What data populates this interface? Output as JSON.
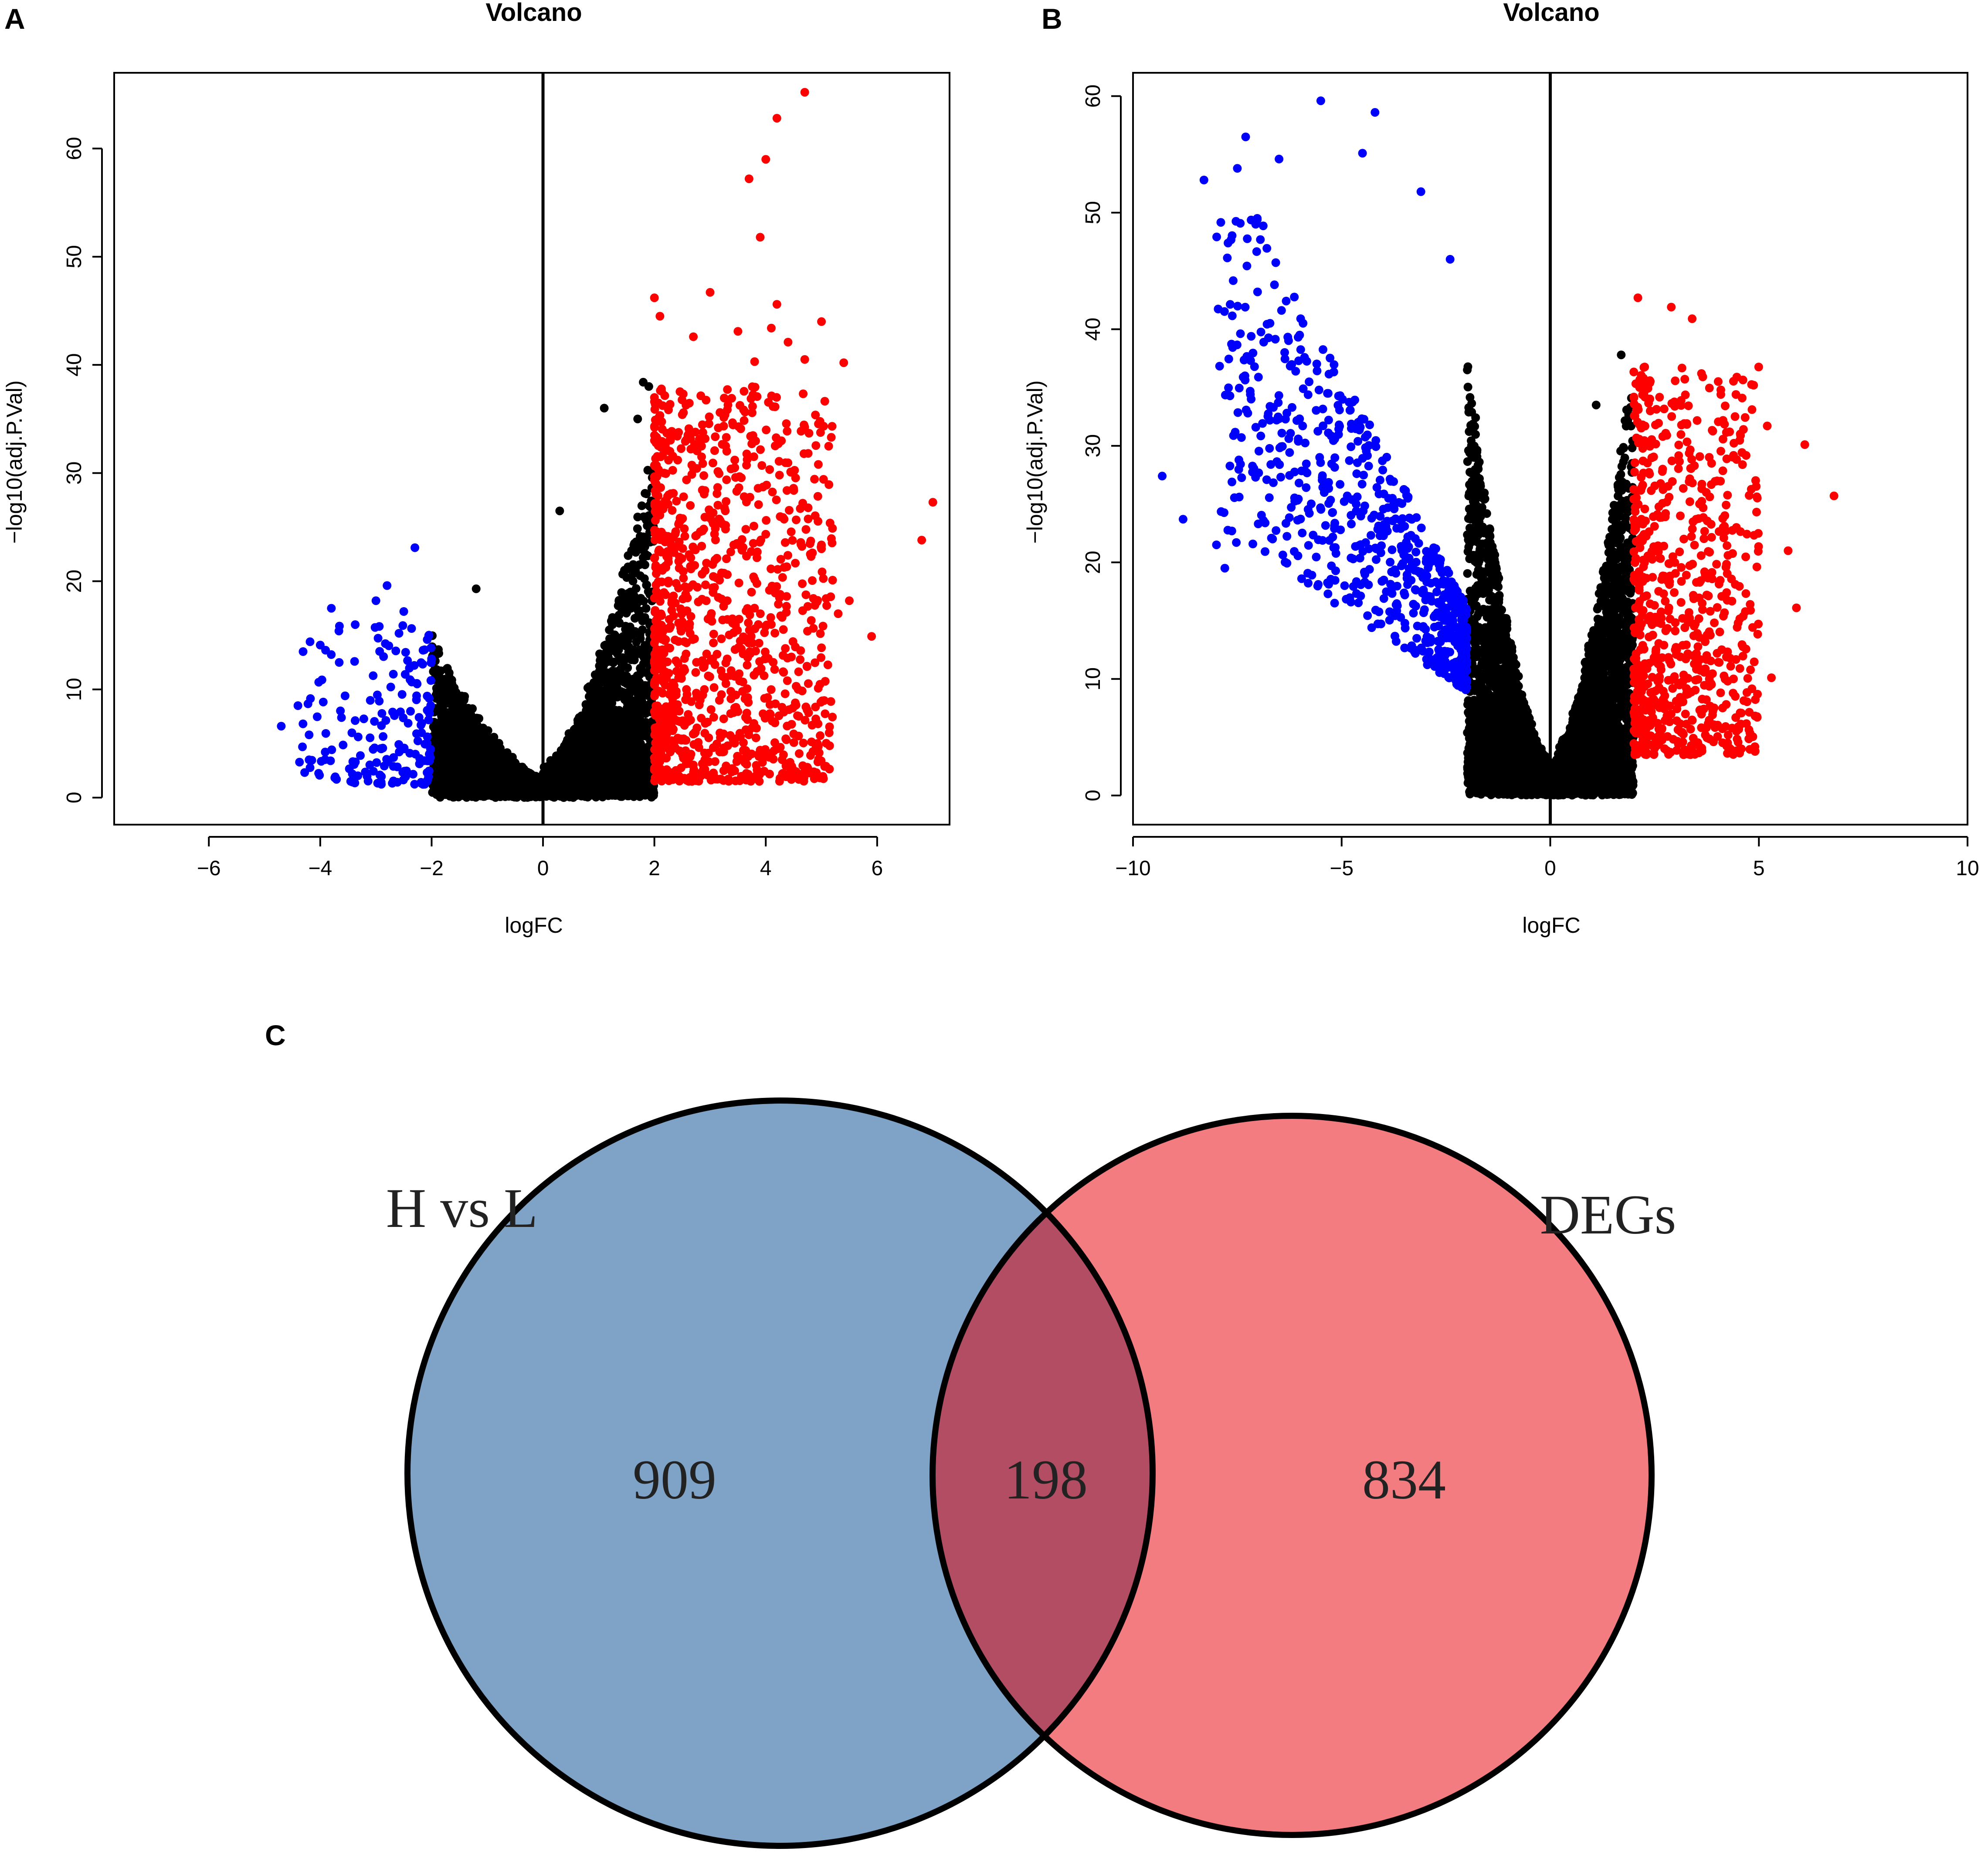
{
  "panels": [
    {
      "letter": "A"
    },
    {
      "letter": "B"
    },
    {
      "letter": "C"
    }
  ],
  "colors": {
    "up": "#FF0000",
    "down": "#0000FF",
    "not_significant": "#000000",
    "venn_left": "#7FA3C7",
    "venn_right": "#F27C80",
    "venn_overlap": "#B24D63",
    "outline": "#000000"
  },
  "chart_data": [
    {
      "panel": "A",
      "type": "scatter",
      "subtype": "volcano",
      "title": "Volcano",
      "xlabel": "logFC",
      "ylabel": "−log10(adj.P.Val)",
      "xlim": [
        -7.7,
        7.3
      ],
      "ylim": [
        -2.5,
        67
      ],
      "xticks": [
        -6,
        -4,
        -2,
        0,
        2,
        4,
        6
      ],
      "xtick_labels": [
        "−6",
        "−4",
        "−2",
        "0",
        "2",
        "4",
        "6"
      ],
      "yticks": [
        0,
        10,
        20,
        30,
        40,
        50,
        60
      ],
      "ytick_labels": [
        "0",
        "10",
        "20",
        "30",
        "40",
        "50",
        "60"
      ],
      "vline_x": 0,
      "logfc_threshold": 2,
      "series": [
        {
          "name": "up",
          "color": "#FF0000",
          "points": [
            [
              4.7,
              65.2
            ],
            [
              4.2,
              62.8
            ],
            [
              4.0,
              59.0
            ],
            [
              3.7,
              57.2
            ],
            [
              3.9,
              51.8
            ],
            [
              3.0,
              46.7
            ],
            [
              2.0,
              46.2
            ],
            [
              4.2,
              45.6
            ],
            [
              2.1,
              44.5
            ],
            [
              5.0,
              44.0
            ],
            [
              3.5,
              43.1
            ],
            [
              2.7,
              42.6
            ],
            [
              4.1,
              43.4
            ],
            [
              4.4,
              42.1
            ],
            [
              4.7,
              40.5
            ],
            [
              5.4,
              40.2
            ],
            [
              3.8,
              40.3
            ],
            [
              7.0,
              27.3
            ],
            [
              6.8,
              23.8
            ],
            [
              5.9,
              14.9
            ],
            [
              5.5,
              18.2
            ],
            [
              5.2,
              20.1
            ],
            [
              5.0,
              23.0
            ],
            [
              5.3,
              17.0
            ],
            [
              4.8,
              22.5
            ]
          ],
          "cloud": {
            "x_range": [
              2.0,
              5.2
            ],
            "y_range": [
              1.5,
              38
            ],
            "count": 1100
          }
        },
        {
          "name": "down",
          "color": "#0000FF",
          "points": [
            [
              -2.3,
              23.1
            ],
            [
              -2.8,
              19.6
            ],
            [
              -3.8,
              17.5
            ],
            [
              -4.0,
              14.1
            ],
            [
              -4.7,
              6.6
            ],
            [
              -4.4,
              8.5
            ],
            [
              -4.2,
              5.8
            ],
            [
              -3.0,
              18.2
            ],
            [
              -2.5,
              17.2
            ]
          ],
          "cloud": {
            "x_range": [
              -4.5,
              -2.0
            ],
            "y_range": [
              1.2,
              16
            ],
            "count": 180
          }
        },
        {
          "name": "not_significant",
          "color": "#000000",
          "points": [
            [
              1.8,
              38.4
            ],
            [
              1.9,
              38.0
            ],
            [
              1.1,
              36.0
            ],
            [
              1.7,
              35.0
            ],
            [
              0.3,
              26.5
            ],
            [
              -1.2,
              19.3
            ]
          ],
          "cloud": {
            "x_range": [
              -2.0,
              2.0
            ],
            "y_range": [
              0.0,
              30
            ],
            "count": 4200
          }
        }
      ]
    },
    {
      "panel": "B",
      "type": "scatter",
      "subtype": "volcano",
      "title": "Volcano",
      "xlabel": "logFC",
      "ylabel": "−log10(adj.P.Val)",
      "xlim": [
        -10,
        10
      ],
      "ylim": [
        -2.5,
        62
      ],
      "xticks": [
        -10,
        -5,
        0,
        5,
        10
      ],
      "xtick_labels": [
        "−10",
        "−5",
        "0",
        "5",
        "10"
      ],
      "yticks": [
        0,
        10,
        20,
        30,
        40,
        50,
        60
      ],
      "ytick_labels": [
        "0",
        "10",
        "20",
        "30",
        "40",
        "50",
        "60"
      ],
      "vline_x": 0,
      "logfc_threshold": 2,
      "series": [
        {
          "name": "down",
          "color": "#0000FF",
          "points": [
            [
              -5.5,
              59.6
            ],
            [
              -4.2,
              58.6
            ],
            [
              -7.3,
              56.5
            ],
            [
              -7.5,
              53.8
            ],
            [
              -6.5,
              54.6
            ],
            [
              -8.3,
              52.8
            ],
            [
              -4.5,
              55.1
            ],
            [
              -3.1,
              51.8
            ],
            [
              -9.3,
              27.4
            ],
            [
              -8.8,
              23.7
            ],
            [
              -7.8,
              19.5
            ],
            [
              -7.0,
              23.3
            ],
            [
              -8.0,
              21.5
            ],
            [
              -2.4,
              46.0
            ]
          ],
          "cloud": {
            "x_range": [
              -8.0,
              -2.0
            ],
            "y_range": [
              5,
              50
            ],
            "count": 700
          }
        },
        {
          "name": "up",
          "color": "#FF0000",
          "points": [
            [
              2.1,
              42.7
            ],
            [
              2.9,
              41.9
            ],
            [
              3.4,
              40.9
            ],
            [
              6.8,
              25.7
            ],
            [
              6.1,
              30.1
            ],
            [
              5.9,
              16.1
            ],
            [
              5.3,
              10.1
            ],
            [
              5.7,
              21.0
            ],
            [
              5.2,
              31.7
            ],
            [
              4.6,
              34.1
            ]
          ],
          "cloud": {
            "x_range": [
              2.0,
              5.0
            ],
            "y_range": [
              3.5,
              37
            ],
            "count": 750
          }
        },
        {
          "name": "not_significant",
          "color": "#000000",
          "points": [
            [
              1.7,
              37.8
            ],
            [
              1.1,
              33.5
            ]
          ],
          "cloud": {
            "x_range": [
              -2.0,
              2.0
            ],
            "y_range": [
              0.0,
              35
            ],
            "count": 5200
          }
        }
      ]
    }
  ],
  "venn": {
    "left_label": "H vs L",
    "right_label": "DEGs",
    "left_only": "909",
    "overlap": "198",
    "right_only": "834"
  }
}
